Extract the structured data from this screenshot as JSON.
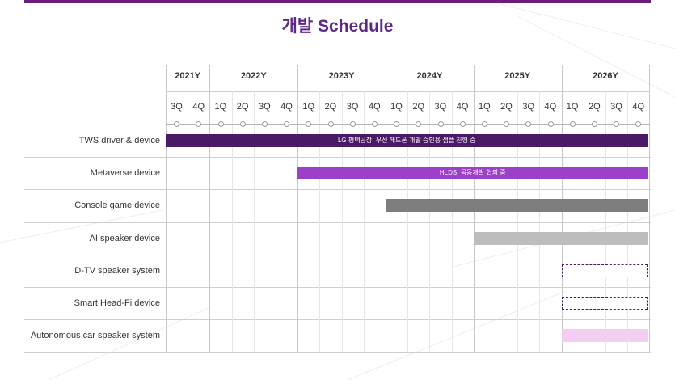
{
  "title": "개발 Schedule",
  "years": [
    "2021Y",
    "2022Y",
    "2023Y",
    "2024Y",
    "2025Y",
    "2026Y"
  ],
  "quarters": [
    "3Q",
    "4Q",
    "1Q",
    "2Q",
    "3Q",
    "4Q",
    "1Q",
    "2Q",
    "3Q",
    "4Q",
    "1Q",
    "2Q",
    "3Q",
    "4Q",
    "1Q",
    "2Q",
    "3Q",
    "4Q",
    "1Q",
    "2Q",
    "3Q",
    "4Q"
  ],
  "rows": [
    {
      "label": "TWS driver & device",
      "bar": {
        "start_quarter": 0,
        "end_quarter": 22,
        "color": "#4b1a66",
        "style": "solid",
        "text": "LG 평택공장, 무선 헤드폰 개발 승인용 샘플 진행 중"
      }
    },
    {
      "label": "Metaverse device",
      "bar": {
        "start_quarter": 6,
        "end_quarter": 22,
        "color": "#9c3fc9",
        "style": "solid",
        "text": "HLDS, 공동개발 협의 중"
      }
    },
    {
      "label": "Console game device",
      "bar": {
        "start_quarter": 10,
        "end_quarter": 22,
        "color": "#7d7d7d",
        "style": "solid",
        "text": ""
      }
    },
    {
      "label": "AI speaker device",
      "bar": {
        "start_quarter": 14,
        "end_quarter": 22,
        "color": "#bdbdbd",
        "style": "solid",
        "text": ""
      }
    },
    {
      "label": "D-TV speaker system",
      "bar": {
        "start_quarter": 18,
        "end_quarter": 22,
        "color": "#4b1a66",
        "style": "dashed",
        "text": ""
      }
    },
    {
      "label": "Smart Head-Fi device",
      "bar": {
        "start_quarter": 18,
        "end_quarter": 22,
        "color": "#4b1a66",
        "style": "dashed",
        "text": ""
      }
    },
    {
      "label": "Autonomous car speaker system",
      "bar": {
        "start_quarter": 18,
        "end_quarter": 22,
        "color": "#f4cdf3",
        "style": "solid",
        "text": ""
      }
    }
  ]
}
